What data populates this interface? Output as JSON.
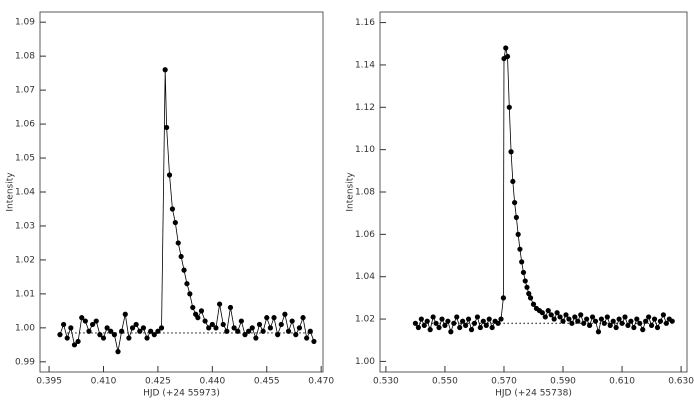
{
  "chart_data": [
    {
      "type": "line",
      "xlabel": "HJD (+24 55973)",
      "ylabel": "Intensity",
      "color": "#000000",
      "xlim": [
        0.3925,
        0.4705
      ],
      "ylim": [
        0.987,
        1.093
      ],
      "xticks": [
        0.395,
        {
          "value": 0.41,
          "label": "0.410"
        },
        0.425,
        {
          "value": 0.44,
          "label": "0.440"
        },
        0.455,
        {
          "value": 0.47,
          "label": "0.470"
        }
      ],
      "yticks": [
        0.99,
        {
          "value": 1.0,
          "label": "1.00"
        },
        1.01,
        1.02,
        1.03,
        1.04,
        1.05,
        1.06,
        1.07,
        1.08,
        1.09
      ],
      "x": [
        0.398,
        0.399,
        0.4,
        0.401,
        0.402,
        0.403,
        0.404,
        0.405,
        0.406,
        0.407,
        0.408,
        0.409,
        0.41,
        0.411,
        0.412,
        0.413,
        0.414,
        0.415,
        0.416,
        0.417,
        0.418,
        0.419,
        0.42,
        0.421,
        0.422,
        0.423,
        0.424,
        0.425,
        0.426,
        0.427,
        0.4274,
        0.4282,
        0.429,
        0.4298,
        0.4306,
        0.4314,
        0.4322,
        0.433,
        0.4338,
        0.4346,
        0.4354,
        0.436,
        0.437,
        0.438,
        0.439,
        0.44,
        0.441,
        0.442,
        0.443,
        0.444,
        0.445,
        0.446,
        0.447,
        0.448,
        0.449,
        0.45,
        0.451,
        0.452,
        0.453,
        0.454,
        0.455,
        0.456,
        0.457,
        0.458,
        0.459,
        0.46,
        0.461,
        0.462,
        0.463,
        0.464,
        0.465,
        0.466,
        0.467,
        0.468
      ],
      "values": [
        0.998,
        1.001,
        0.997,
        1.0,
        0.995,
        0.996,
        1.003,
        1.002,
        0.999,
        1.001,
        1.002,
        0.998,
        0.997,
        1.0,
        0.999,
        0.998,
        0.993,
        0.999,
        1.004,
        0.997,
        1.0,
        1.001,
        0.999,
        1.0,
        0.997,
        0.999,
        0.998,
        0.999,
        1.0,
        1.076,
        1.059,
        1.045,
        1.035,
        1.031,
        1.025,
        1.021,
        1.017,
        1.013,
        1.01,
        1.006,
        1.004,
        1.003,
        1.005,
        1.002,
        1.0,
        1.001,
        1.0,
        1.007,
        1.001,
        0.999,
        1.006,
        1.0,
        0.999,
        1.002,
        0.998,
        0.999,
        1.0,
        0.997,
        1.001,
        0.999,
        1.003,
        1.0,
        1.003,
        0.998,
        1.001,
        1.004,
        0.999,
        1.002,
        0.998,
        1.0,
        1.003,
        0.997,
        0.999,
        0.996
      ],
      "baseline": {
        "x": [
          0.4,
          0.468
        ],
        "y": [
          0.9985,
          0.9985
        ]
      }
    },
    {
      "type": "line",
      "xlabel": "HJD (+24 55738)",
      "ylabel": "Intensity",
      "color": "#000000",
      "xlim": [
        0.528,
        0.632
      ],
      "ylim": [
        0.995,
        1.165
      ],
      "xticks": [
        {
          "value": 0.53,
          "label": "0.530"
        },
        {
          "value": 0.55,
          "label": "0.550"
        },
        {
          "value": 0.57,
          "label": "0.570"
        },
        {
          "value": 0.59,
          "label": "0.590"
        },
        {
          "value": 0.61,
          "label": "0.610"
        },
        {
          "value": 0.63,
          "label": "0.630"
        }
      ],
      "yticks": [
        {
          "value": 1.0,
          "label": "1.00"
        },
        1.02,
        1.04,
        1.06,
        1.08,
        {
          "value": 1.1,
          "label": "1.10"
        },
        1.12,
        1.14,
        1.16
      ],
      "x": [
        0.54,
        0.541,
        0.542,
        0.543,
        0.544,
        0.545,
        0.546,
        0.547,
        0.548,
        0.549,
        0.55,
        0.551,
        0.552,
        0.553,
        0.554,
        0.555,
        0.556,
        0.557,
        0.558,
        0.559,
        0.56,
        0.561,
        0.562,
        0.563,
        0.564,
        0.565,
        0.566,
        0.567,
        0.568,
        0.569,
        0.5698,
        0.57,
        0.5706,
        0.5712,
        0.5718,
        0.5724,
        0.573,
        0.5736,
        0.5742,
        0.5748,
        0.5754,
        0.576,
        0.5766,
        0.5772,
        0.5778,
        0.5784,
        0.579,
        0.58,
        0.581,
        0.582,
        0.583,
        0.584,
        0.585,
        0.586,
        0.587,
        0.588,
        0.589,
        0.59,
        0.591,
        0.592,
        0.593,
        0.594,
        0.595,
        0.596,
        0.597,
        0.598,
        0.599,
        0.6,
        0.601,
        0.602,
        0.603,
        0.604,
        0.605,
        0.606,
        0.607,
        0.608,
        0.609,
        0.61,
        0.611,
        0.612,
        0.613,
        0.614,
        0.615,
        0.616,
        0.617,
        0.618,
        0.619,
        0.62,
        0.621,
        0.622,
        0.623,
        0.624,
        0.625,
        0.626,
        0.627
      ],
      "values": [
        1.018,
        1.016,
        1.02,
        1.017,
        1.019,
        1.015,
        1.021,
        1.018,
        1.016,
        1.02,
        1.017,
        1.019,
        1.014,
        1.018,
        1.021,
        1.016,
        1.019,
        1.017,
        1.02,
        1.015,
        1.018,
        1.021,
        1.016,
        1.019,
        1.017,
        1.02,
        1.016,
        1.019,
        1.018,
        1.02,
        1.03,
        1.143,
        1.148,
        1.144,
        1.12,
        1.099,
        1.085,
        1.075,
        1.068,
        1.06,
        1.053,
        1.047,
        1.042,
        1.038,
        1.035,
        1.032,
        1.03,
        1.027,
        1.025,
        1.024,
        1.023,
        1.021,
        1.024,
        1.022,
        1.02,
        1.023,
        1.021,
        1.019,
        1.022,
        1.02,
        1.018,
        1.021,
        1.019,
        1.022,
        1.018,
        1.02,
        1.017,
        1.021,
        1.019,
        1.014,
        1.02,
        1.018,
        1.021,
        1.017,
        1.019,
        1.016,
        1.02,
        1.018,
        1.021,
        1.017,
        1.019,
        1.016,
        1.02,
        1.018,
        1.015,
        1.019,
        1.021,
        1.017,
        1.02,
        1.016,
        1.019,
        1.022,
        1.018,
        1.02,
        1.019
      ],
      "baseline": {
        "x": [
          0.54,
          0.627
        ],
        "y": [
          1.018,
          1.018
        ]
      }
    }
  ]
}
